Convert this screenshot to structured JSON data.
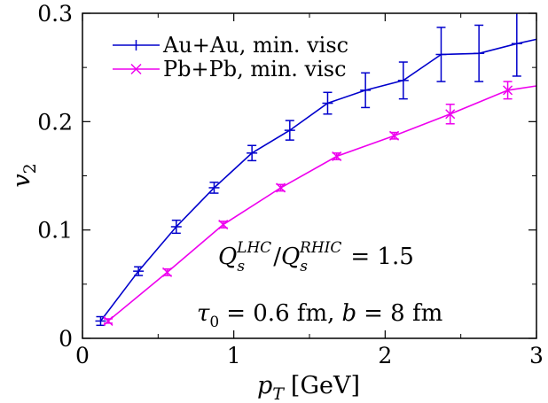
{
  "chart_data": {
    "type": "line",
    "xlabel": {
      "var": "p",
      "sub": "T",
      "unit": "[GeV]"
    },
    "ylabel": {
      "var": "v",
      "sub": "2"
    },
    "xlim": [
      0,
      3
    ],
    "ylim": [
      0,
      0.3
    ],
    "xticks": [
      "0",
      "1",
      "2",
      "3"
    ],
    "yticks": [
      "0",
      "0.1",
      "0.2",
      "0.3"
    ],
    "legend_position": "top-left",
    "grid": false,
    "series": [
      {
        "name": "Au+Au, min. visc",
        "color": "#0000cc",
        "marker": "plus",
        "x": [
          0.12,
          0.37,
          0.62,
          0.87,
          1.12,
          1.37,
          1.62,
          1.87,
          2.12,
          2.37,
          2.62,
          2.87,
          3.0
        ],
        "y": [
          0.016,
          0.062,
          0.103,
          0.139,
          0.171,
          0.192,
          0.217,
          0.229,
          0.238,
          0.262,
          0.263,
          0.272,
          0.276
        ],
        "err": [
          0.004,
          0.004,
          0.006,
          0.005,
          0.007,
          0.009,
          0.01,
          0.016,
          0.017,
          0.025,
          0.026,
          0.03,
          0
        ]
      },
      {
        "name": "Pb+Pb, min. visc",
        "color": "#ee00ee",
        "marker": "cross",
        "x": [
          0.17,
          0.56,
          0.93,
          1.31,
          1.68,
          2.06,
          2.43,
          2.81,
          3.0
        ],
        "y": [
          0.016,
          0.061,
          0.105,
          0.139,
          0.168,
          0.187,
          0.207,
          0.229,
          0.233
        ],
        "err": [
          0.002,
          0.003,
          0.003,
          0.003,
          0.003,
          0.003,
          0.009,
          0.008,
          0
        ]
      }
    ],
    "annotations": [
      {
        "q": "Q",
        "sub": "s",
        "sup1": "LHC",
        "sup2": "RHIC",
        "eq": "= 1.5"
      },
      {
        "tau": "τ",
        "tau_sub": "0",
        "tau_eq": "= 0.6 fm,",
        "b": "b",
        "b_eq": "= 8 fm"
      }
    ]
  }
}
